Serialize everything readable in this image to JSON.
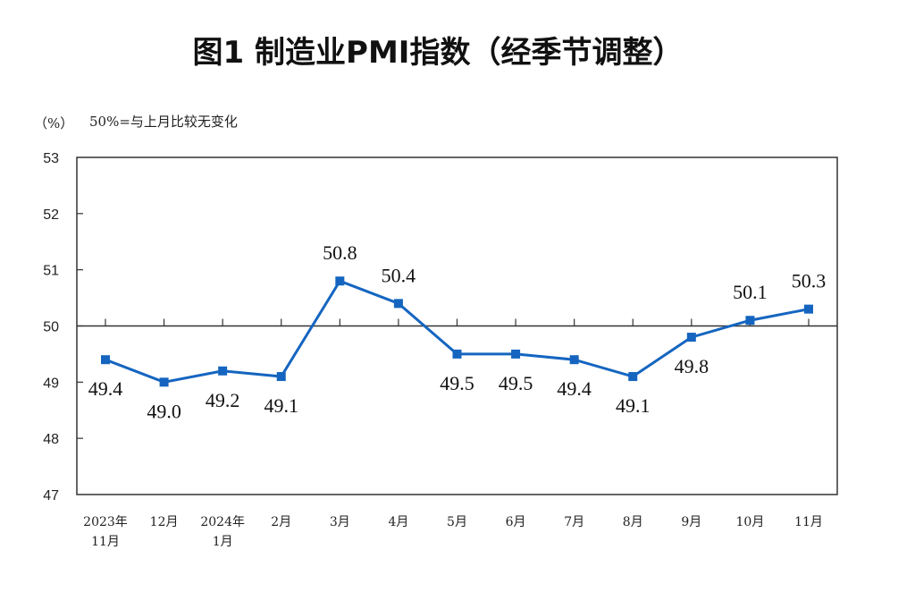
{
  "chart_data": {
    "type": "line",
    "title": "图1  制造业PMI指数（经季节调整）",
    "ylabel": "（%）",
    "annotation": "50%=与上月比较无变化",
    "ylim": [
      47,
      53
    ],
    "yticks": [
      "47",
      "48",
      "49",
      "50",
      "51",
      "52",
      "53"
    ],
    "reference_line": 50,
    "grid": false,
    "categories": [
      [
        "2023年",
        "11月"
      ],
      [
        "12月"
      ],
      [
        "2024年",
        "1月"
      ],
      [
        "2月"
      ],
      [
        "3月"
      ],
      [
        "4月"
      ],
      [
        "5月"
      ],
      [
        "6月"
      ],
      [
        "7月"
      ],
      [
        "8月"
      ],
      [
        "9月"
      ],
      [
        "10月"
      ],
      [
        "11月"
      ]
    ],
    "series": [
      {
        "values": [
          49.4,
          49.0,
          49.2,
          49.1,
          50.8,
          50.4,
          49.5,
          49.5,
          49.4,
          49.1,
          49.8,
          50.1,
          50.3
        ],
        "labels": [
          "49.4",
          "49.0",
          "49.2",
          "49.1",
          "50.8",
          "50.4",
          "49.5",
          "49.5",
          "49.4",
          "49.1",
          "49.8",
          "50.1",
          "50.3"
        ],
        "label_position": [
          "below",
          "below",
          "below",
          "below",
          "above",
          "above",
          "below",
          "below",
          "below",
          "below",
          "below",
          "above",
          "above"
        ],
        "color": "#1565c0"
      }
    ]
  }
}
